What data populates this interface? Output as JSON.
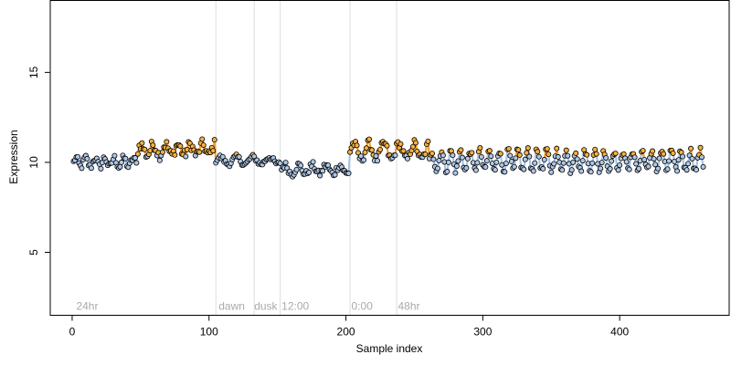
{
  "chart_data": {
    "type": "scatter",
    "title": "",
    "xlabel": "Sample index",
    "ylabel": "Expression",
    "xlim": [
      -16,
      480
    ],
    "ylim": [
      1.5,
      19
    ],
    "xticks": [
      0,
      100,
      200,
      300,
      400
    ],
    "yticks": [
      5,
      10,
      15
    ],
    "grid": false,
    "legend": "none",
    "colors": {
      "high_point": "#f5b041",
      "low_point": "#aec7e8",
      "point_edge": "#000000",
      "high_line": "#f0a030",
      "low_line": "#a9c3e3",
      "vline": "#dddddd",
      "annotation": "#aaaaaa"
    },
    "segment_vlines": [
      105,
      133,
      152,
      203,
      237
    ],
    "segment_labels": [
      {
        "x": 3,
        "label": "24hr"
      },
      {
        "x": 107,
        "label": "dawn"
      },
      {
        "x": 133,
        "label": "dusk"
      },
      {
        "x": 153,
        "label": "12:00"
      },
      {
        "x": 204,
        "label": "0:00"
      },
      {
        "x": 238,
        "label": "48hr"
      }
    ],
    "label_y": 2,
    "segments": [
      {
        "x_start": 1,
        "x_end": 47,
        "base": 10.0,
        "amp": 0.25,
        "noise": 0.2,
        "period": 7
      },
      {
        "x_start": 48,
        "x_end": 104,
        "base": 10.7,
        "amp": 0.3,
        "noise": 0.3,
        "period": 9
      },
      {
        "x_start": 105,
        "x_end": 152,
        "base": 10.1,
        "amp": 0.2,
        "noise": 0.15,
        "period": 12
      },
      {
        "x_start": 153,
        "x_end": 202,
        "base": 9.6,
        "amp": 0.25,
        "noise": 0.2,
        "period": 10
      },
      {
        "x_start": 203,
        "x_end": 260,
        "base": 10.6,
        "amp": 0.45,
        "noise": 0.25,
        "period": 11
      },
      {
        "x_start": 261,
        "x_end": 461,
        "base": 10.1,
        "amp": 0.55,
        "noise": 0.2,
        "period": 7
      }
    ],
    "high_threshold": 10.4
  }
}
